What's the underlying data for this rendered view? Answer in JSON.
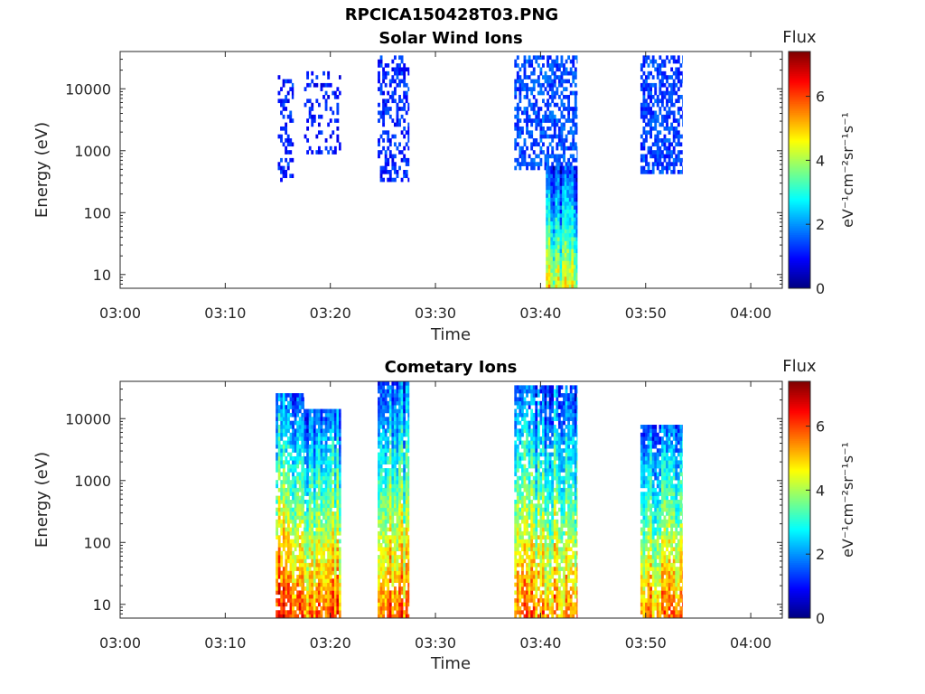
{
  "page": {
    "title": "RPCICA150428T03.PNG"
  },
  "colors": {
    "axis": "#262626",
    "background": "#ffffff"
  },
  "chart_data": [
    {
      "type": "heatmap",
      "title": "Solar Wind Ions",
      "xlabel": "Time",
      "ylabel": "Energy (eV)",
      "yscale": "log",
      "x_ticks": [
        "03:00",
        "03:10",
        "03:20",
        "03:30",
        "03:40",
        "03:50",
        "04:00"
      ],
      "x_range_minutes": [
        0,
        63
      ],
      "y_ticks": [
        "10",
        "100",
        "1000",
        "10000"
      ],
      "y_tick_values": [
        10,
        100,
        1000,
        10000
      ],
      "ylim": [
        6,
        40000
      ],
      "colorbar": {
        "label": "Flux",
        "units": "eV⁻¹cm⁻²sr⁻¹s⁻¹",
        "ticks": [
          "0",
          "2",
          "4",
          "6"
        ],
        "tick_values": [
          0,
          2,
          4,
          6
        ],
        "range": [
          0,
          7.4
        ],
        "colormap": "jet"
      },
      "blocks": [
        {
          "t": [
            15.0,
            16.5
          ],
          "e": [
            350,
            22000
          ],
          "flux": 1.0,
          "density": 0.35,
          "seed": 1
        },
        {
          "t": [
            17.5,
            21.0
          ],
          "e": [
            1000,
            18000
          ],
          "flux": 0.9,
          "density": 0.25,
          "seed": 2
        },
        {
          "t": [
            24.5,
            27.5
          ],
          "e": [
            320,
            30000
          ],
          "flux": 1.0,
          "density": 0.45,
          "seed": 3
        },
        {
          "t": [
            37.5,
            43.5
          ],
          "e": [
            500,
            32000
          ],
          "flux": 1.3,
          "density": 0.55,
          "seed": 4
        },
        {
          "t": [
            40.5,
            43.5
          ],
          "e": [
            6,
            500
          ],
          "flux": 3.8,
          "density": 1.0,
          "seed": 5
        },
        {
          "t": [
            49.5,
            53.5
          ],
          "e": [
            450,
            32000
          ],
          "flux": 1.2,
          "density": 0.6,
          "seed": 6
        }
      ]
    },
    {
      "type": "heatmap",
      "title": "Cometary Ions",
      "xlabel": "Time",
      "ylabel": "Energy (eV)",
      "yscale": "log",
      "x_ticks": [
        "03:00",
        "03:10",
        "03:20",
        "03:30",
        "03:40",
        "03:50",
        "04:00"
      ],
      "x_range_minutes": [
        0,
        63
      ],
      "y_ticks": [
        "10",
        "100",
        "1000",
        "10000"
      ],
      "y_tick_values": [
        10,
        100,
        1000,
        10000
      ],
      "ylim": [
        6,
        40000
      ],
      "colorbar": {
        "label": "Flux",
        "units": "eV⁻¹cm⁻²sr⁻¹s⁻¹",
        "ticks": [
          "0",
          "2",
          "4",
          "6"
        ],
        "tick_values": [
          0,
          2,
          4,
          6
        ],
        "range": [
          0,
          7.4
        ],
        "colormap": "jet"
      },
      "blocks": [
        {
          "t": [
            14.8,
            17.5
          ],
          "e": [
            6,
            25000
          ],
          "flux": 5.5,
          "density": 0.85,
          "seed": 11
        },
        {
          "t": [
            17.5,
            21.0
          ],
          "e": [
            6,
            14000
          ],
          "flux": 5.0,
          "density": 0.95,
          "seed": 12
        },
        {
          "t": [
            24.5,
            27.5
          ],
          "e": [
            6,
            35000
          ],
          "flux": 5.0,
          "density": 0.9,
          "seed": 13
        },
        {
          "t": [
            37.5,
            43.5
          ],
          "e": [
            6,
            30000
          ],
          "flux": 4.8,
          "density": 0.85,
          "seed": 14
        },
        {
          "t": [
            49.5,
            53.5
          ],
          "e": [
            6,
            7500
          ],
          "flux": 4.8,
          "density": 0.9,
          "seed": 15
        }
      ]
    }
  ]
}
